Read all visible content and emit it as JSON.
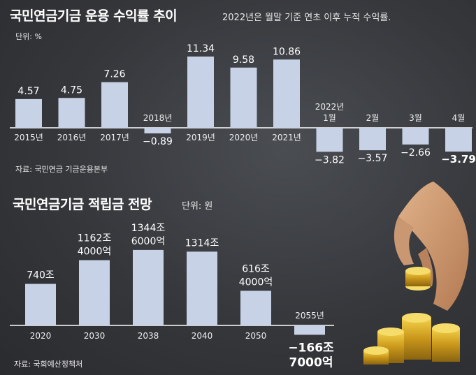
{
  "header": {
    "title1": "국민연금기금 운용 수익률 추이",
    "subtitle1": "2022년은 월말 기준 연초 이후 누적 수익률.",
    "unit1": "단위: %",
    "source1": "자료: 국민연금 기금운용본부",
    "title2": "국민연금기금 적립금 전망",
    "unit2": "단위: 원",
    "source2": "자료: 국회예산정책처"
  },
  "chart_data": [
    {
      "type": "bar",
      "title": "국민연금기금 운용 수익률 추이",
      "subtitle": "2022년은 월말 기준 연초 이후 누적 수익률.",
      "unit": "%",
      "categories": [
        "2015년",
        "2016년",
        "2017년",
        "2018년",
        "2019년",
        "2020년",
        "2021년",
        "2022년 1월",
        "2월",
        "3월",
        "4월"
      ],
      "values": [
        4.57,
        4.75,
        7.26,
        -0.89,
        11.34,
        9.58,
        10.86,
        -3.82,
        -3.57,
        -2.66,
        -3.79
      ],
      "category_labels": [
        [
          "2015년"
        ],
        [
          "2016년"
        ],
        [
          "2017년"
        ],
        [
          "2018년"
        ],
        [
          "2019년"
        ],
        [
          "2020년"
        ],
        [
          "2021년"
        ],
        [
          "2022년",
          "1월"
        ],
        [
          "2월"
        ],
        [
          "3월"
        ],
        [
          "4월"
        ]
      ],
      "value_labels": [
        "4.57",
        "4.75",
        "7.26",
        "−0.89",
        "11.34",
        "9.58",
        "10.86",
        "−3.82",
        "−3.57",
        "−2.66",
        "−3.79"
      ],
      "bar_color": "#c8d2e6",
      "source": "자료: 국민연금 기금운용본부"
    },
    {
      "type": "bar",
      "title": "국민연금기금 적립금 전망",
      "unit": "원",
      "categories": [
        "2020",
        "2030",
        "2038",
        "2040",
        "2050",
        "2055년"
      ],
      "values": [
        740,
        1162.4,
        1344.6,
        1314,
        616.4,
        -166.7
      ],
      "value_unit": "조원",
      "value_labels": [
        [
          "740조"
        ],
        [
          "1162조",
          "4000억"
        ],
        [
          "1344조",
          "6000억"
        ],
        [
          "1314조"
        ],
        [
          "616조",
          "4000억"
        ],
        [
          "−166조",
          "7000억"
        ]
      ],
      "bar_color": "#c8d2e6",
      "source": "자료: 국회예산정책처"
    }
  ]
}
